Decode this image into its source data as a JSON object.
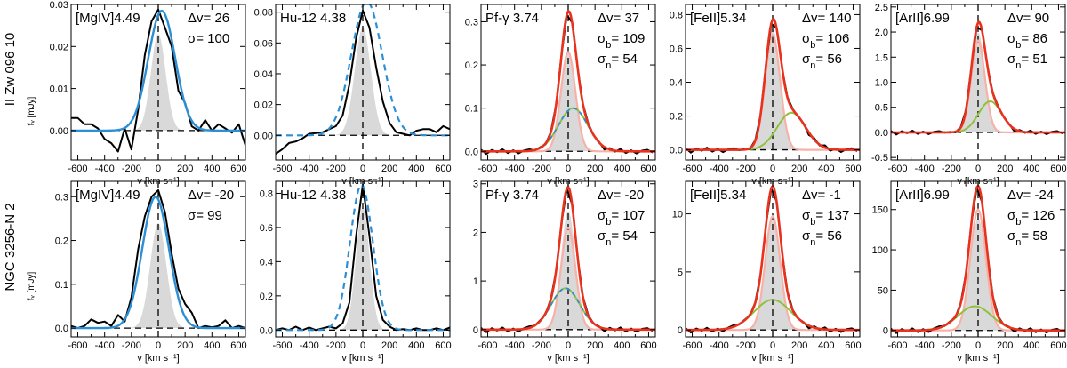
{
  "figure": {
    "row_labels": [
      "II Zw 096 10",
      "NGC 3256-N 2"
    ],
    "x_axis_label": "v [km s⁻¹]",
    "y_axis_label": "fᵥ [mJy]"
  },
  "chart_data": [
    {
      "type": "line",
      "row": 0,
      "col": 0,
      "line": "[MgIV]4.49",
      "stats": [
        "Δv= 26",
        "σ= 100"
      ],
      "xlim": [
        -650,
        650
      ],
      "ylim": [
        -0.007,
        0.03
      ],
      "xticks": [
        -600,
        -400,
        -200,
        0,
        200,
        400,
        600
      ],
      "yticks": [
        0.0,
        0.01,
        0.02,
        0.03
      ],
      "ytick_labels": [
        "0.00",
        "0.01",
        "0.02",
        "0.03"
      ],
      "components": {
        "narrow_peak": 0.023,
        "narrow_sigma": 55,
        "fit_shape": "single",
        "fit_peak": 0.0285,
        "fit_sigma": 100,
        "fit_center": 26,
        "obs_peak": 0.0288
      },
      "series": [
        {
          "name": "observed",
          "x": [
            -650,
            -600,
            -550,
            -500,
            -450,
            -400,
            -350,
            -300,
            -250,
            -200,
            -150,
            -100,
            -50,
            0,
            50,
            100,
            150,
            200,
            250,
            300,
            350,
            400,
            450,
            500,
            550,
            600,
            650
          ],
          "y": [
            0.003,
            0.003,
            0.0015,
            0.0015,
            0.0005,
            -0.002,
            -0.003,
            -0.005,
            0.0005,
            -0.0045,
            0.005,
            0.018,
            0.026,
            0.0288,
            0.0245,
            0.02,
            0.0095,
            0.0065,
            0.001,
            0.0,
            0.0025,
            0.0,
            0.0015,
            0.0005,
            -0.0005,
            0.0015,
            -0.0035
          ]
        }
      ]
    },
    {
      "type": "line",
      "row": 0,
      "col": 1,
      "line": "Hu-12 4.38",
      "stats": [],
      "xlim": [
        -650,
        650
      ],
      "ylim": [
        -0.016,
        0.085
      ],
      "xticks": [
        -600,
        -400,
        -200,
        0,
        200,
        400,
        600
      ],
      "yticks": [
        0.0,
        0.02,
        0.04,
        0.06,
        0.08
      ],
      "ytick_labels": [
        "0.00",
        "0.02",
        "0.04",
        "0.06",
        "0.08"
      ],
      "components": {
        "narrow_peak": 0.07,
        "narrow_sigma": 60,
        "fit_shape": "dashed",
        "fit_peak": 0.087,
        "fit_sigma": 115,
        "fit_center": 30,
        "obs_peak": 0.081
      },
      "series": [
        {
          "name": "observed",
          "x": [
            -650,
            -600,
            -550,
            -500,
            -450,
            -400,
            -350,
            -300,
            -250,
            -200,
            -150,
            -100,
            -50,
            0,
            50,
            100,
            150,
            200,
            250,
            300,
            350,
            400,
            450,
            500,
            550,
            600,
            650
          ],
          "y": [
            -0.012,
            -0.009,
            -0.005,
            -0.004,
            -0.002,
            0.001,
            0.0015,
            0.002,
            0.004,
            0.006,
            0.013,
            0.033,
            0.063,
            0.081,
            0.07,
            0.044,
            0.022,
            0.008,
            0.002,
            0.001,
            0.0,
            0.003,
            0.004,
            0.004,
            0.002,
            0.006,
            0.004
          ]
        }
      ]
    },
    {
      "type": "line",
      "row": 0,
      "col": 2,
      "line": "Pf-γ 3.74",
      "stats": [
        "Δv= 37",
        "σb= 109",
        "σn= 54"
      ],
      "xlim": [
        -650,
        650
      ],
      "ylim": [
        -0.02,
        0.34
      ],
      "xticks": [
        -600,
        -400,
        -200,
        0,
        200,
        400,
        600
      ],
      "yticks": [
        0.0,
        0.1,
        0.2,
        0.3
      ],
      "ytick_labels": [
        "0.0",
        "0.1",
        "0.2",
        "0.3"
      ],
      "components": {
        "narrow_peak": 0.23,
        "narrow_sigma": 54,
        "fit_shape": "double",
        "fit_peak": 0.33,
        "broad_peak": 0.1,
        "broad_sigma": 109,
        "broad_center": 37,
        "obs_peak": 0.33
      },
      "series": []
    },
    {
      "type": "line",
      "row": 0,
      "col": 3,
      "line": "[FeII]5.34",
      "stats": [
        "Δv= 140",
        "σb= 106",
        "σn= 56"
      ],
      "xlim": [
        -650,
        650
      ],
      "ylim": [
        -0.06,
        0.86
      ],
      "xticks": [
        -600,
        -400,
        -200,
        0,
        200,
        400,
        600
      ],
      "yticks": [
        0.0,
        0.2,
        0.4,
        0.6,
        0.8
      ],
      "ytick_labels": [
        "0.0",
        "0.2",
        "0.4",
        "0.6",
        "0.8"
      ],
      "components": {
        "narrow_peak": 0.72,
        "narrow_sigma": 56,
        "fit_shape": "double",
        "fit_peak": 0.9,
        "broad_peak": 0.22,
        "broad_sigma": 106,
        "broad_center": 140,
        "obs_peak": 0.86
      },
      "series": []
    },
    {
      "type": "line",
      "row": 0,
      "col": 4,
      "line": "[ArII]6.99",
      "stats": [
        "Δv= 90",
        "σb= 86",
        "σn= 51"
      ],
      "xlim": [
        -650,
        650
      ],
      "ylim": [
        -0.55,
        2.55
      ],
      "xticks": [
        -600,
        -400,
        -200,
        0,
        200,
        400,
        600
      ],
      "yticks": [
        -0.5,
        0.0,
        0.5,
        1.0,
        1.5,
        2.0,
        2.5
      ],
      "ytick_labels": [
        "-0.5",
        "0.0",
        "0.5",
        "1.0",
        "1.5",
        "2.0",
        "2.5"
      ],
      "components": {
        "narrow_peak": 2.0,
        "narrow_sigma": 51,
        "fit_shape": "double",
        "fit_peak": 2.45,
        "broad_peak": 0.62,
        "broad_sigma": 86,
        "broad_center": 90,
        "obs_peak": 2.35
      },
      "series": []
    },
    {
      "type": "line",
      "row": 1,
      "col": 0,
      "line": "[MgIV]4.49",
      "stats": [
        "Δv= -20",
        "σ= 99"
      ],
      "xlim": [
        -650,
        650
      ],
      "ylim": [
        -0.02,
        0.335
      ],
      "xticks": [
        -600,
        -400,
        -200,
        0,
        200,
        400,
        600
      ],
      "yticks": [
        0.0,
        0.1,
        0.2,
        0.3
      ],
      "ytick_labels": [
        "0.0",
        "0.1",
        "0.2",
        "0.3"
      ],
      "components": {
        "narrow_peak": 0.24,
        "narrow_sigma": 60,
        "fit_shape": "single",
        "fit_peak": 0.3,
        "fit_sigma": 99,
        "fit_center": -20,
        "obs_peak": 0.315
      },
      "series": [
        {
          "name": "observed",
          "x": [
            -650,
            -600,
            -550,
            -500,
            -450,
            -400,
            -350,
            -300,
            -250,
            -200,
            -150,
            -100,
            -50,
            0,
            50,
            100,
            150,
            200,
            250,
            300,
            350,
            400,
            450,
            500,
            550,
            600,
            650
          ],
          "y": [
            0.005,
            0.0,
            0.005,
            0.02,
            0.012,
            0.015,
            0.005,
            0.03,
            0.015,
            0.07,
            0.18,
            0.255,
            0.3,
            0.315,
            0.265,
            0.17,
            0.09,
            0.055,
            0.035,
            0.0,
            0.005,
            0.002,
            0.005,
            0.018,
            0.0,
            0.005,
            0.0
          ]
        }
      ]
    },
    {
      "type": "line",
      "row": 1,
      "col": 1,
      "line": "Hu-12 4.38",
      "stats": [],
      "xlim": [
        -650,
        650
      ],
      "ylim": [
        -0.04,
        0.87
      ],
      "xticks": [
        -600,
        -400,
        -200,
        0,
        200,
        400,
        600
      ],
      "yticks": [
        0.0,
        0.2,
        0.4,
        0.6,
        0.8
      ],
      "ytick_labels": [
        "0.0",
        "0.2",
        "0.4",
        "0.6",
        "0.8"
      ],
      "components": {
        "narrow_peak": 0.72,
        "narrow_sigma": 50,
        "fit_shape": "dashed",
        "fit_peak": 0.85,
        "fit_sigma": 85,
        "fit_center": -10,
        "obs_peak": 0.85
      },
      "series": [
        {
          "name": "observed",
          "x": [
            -650,
            -600,
            -550,
            -500,
            -450,
            -400,
            -350,
            -300,
            -250,
            -200,
            -150,
            -100,
            -50,
            0,
            50,
            100,
            150,
            200,
            250,
            300,
            350,
            400,
            450,
            500,
            550,
            600,
            650
          ],
          "y": [
            0.0,
            0.01,
            0.0,
            0.02,
            0.0,
            0.015,
            0.0,
            0.01,
            0.02,
            0.01,
            0.04,
            0.16,
            0.55,
            0.85,
            0.55,
            0.2,
            0.06,
            0.02,
            0.0,
            0.005,
            0.0,
            0.01,
            0.0,
            0.0,
            0.01,
            0.0,
            0.015
          ]
        }
      ]
    },
    {
      "type": "line",
      "row": 1,
      "col": 2,
      "line": "Pf-γ 3.74",
      "stats": [
        "Δv= -20",
        "σb= 107",
        "σn= 54"
      ],
      "xlim": [
        -650,
        650
      ],
      "ylim": [
        -0.15,
        3.05
      ],
      "xticks": [
        -600,
        -400,
        -200,
        0,
        200,
        400,
        600
      ],
      "yticks": [
        0,
        1,
        2,
        3
      ],
      "ytick_labels": [
        "0",
        "1",
        "2",
        "3"
      ],
      "components": {
        "narrow_peak": 2.45,
        "narrow_sigma": 54,
        "fit_shape": "double",
        "fit_peak": 2.95,
        "broad_peak": 0.85,
        "broad_sigma": 107,
        "broad_center": -20,
        "obs_peak": 2.9
      },
      "series": []
    },
    {
      "type": "line",
      "row": 1,
      "col": 3,
      "line": "[FeII]5.34",
      "stats": [
        "Δv= -1",
        "σb= 137",
        "σn= 56"
      ],
      "xlim": [
        -650,
        650
      ],
      "ylim": [
        -0.6,
        12.8
      ],
      "xticks": [
        -600,
        -400,
        -200,
        0,
        200,
        400,
        600
      ],
      "yticks": [
        0,
        5,
        10
      ],
      "ytick_labels": [
        "0",
        "5",
        "10"
      ],
      "components": {
        "narrow_peak": 9.5,
        "narrow_sigma": 56,
        "fit_shape": "double",
        "fit_peak": 12.4,
        "broad_peak": 2.6,
        "broad_sigma": 137,
        "broad_center": -1,
        "obs_peak": 12.1
      },
      "series": []
    },
    {
      "type": "line",
      "row": 1,
      "col": 4,
      "line": "[ArII]6.99",
      "stats": [
        "Δv= -24",
        "σb= 126",
        "σn= 58"
      ],
      "xlim": [
        -650,
        650
      ],
      "ylim": [
        -8,
        185
      ],
      "xticks": [
        -600,
        -400,
        -200,
        0,
        200,
        400,
        600
      ],
      "yticks": [
        0,
        50,
        100,
        150
      ],
      "ytick_labels": [
        "0",
        "50",
        "100",
        "150"
      ],
      "components": {
        "narrow_peak": 140,
        "narrow_sigma": 58,
        "fit_shape": "double",
        "fit_peak": 180,
        "broad_peak": 30,
        "broad_sigma": 126,
        "broad_center": -24,
        "obs_peak": 176
      },
      "series": []
    }
  ]
}
